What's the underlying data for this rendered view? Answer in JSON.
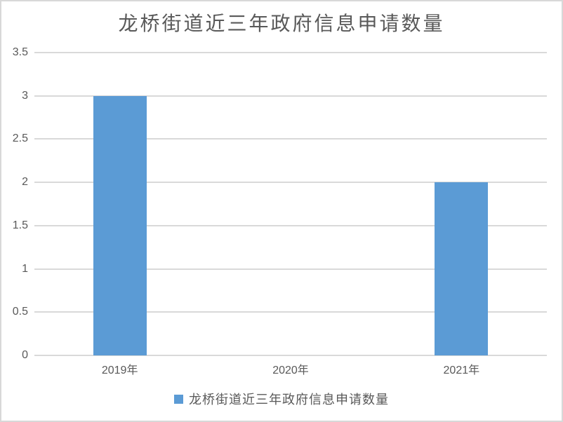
{
  "chart_data": {
    "type": "bar",
    "title": "龙桥街道近三年政府信息申请数量",
    "categories": [
      "2019年",
      "2020年",
      "2021年"
    ],
    "series": [
      {
        "name": "龙桥街道近三年政府信息申请数量",
        "values": [
          3,
          0,
          2
        ]
      }
    ],
    "ylim": [
      0,
      3.5
    ],
    "yticks": [
      0,
      0.5,
      1,
      1.5,
      2,
      2.5,
      3,
      3.5
    ],
    "ytick_labels": [
      "0",
      "0.5",
      "1",
      "1.5",
      "2",
      "2.5",
      "3",
      "3.5"
    ],
    "xlabel": "",
    "ylabel": "",
    "grid": true,
    "legend_position": "bottom",
    "colors": {
      "bar": "#5b9bd5",
      "gridline": "#d9d9d9",
      "axis_line": "#d9d9d9",
      "axis_text": "#595959",
      "title_text": "#595959",
      "frame_border": "#d8d8d8",
      "background": "#ffffff"
    }
  },
  "legend": {
    "label": "龙桥街道近三年政府信息申请数量",
    "swatch_color": "#5b9bd5"
  }
}
